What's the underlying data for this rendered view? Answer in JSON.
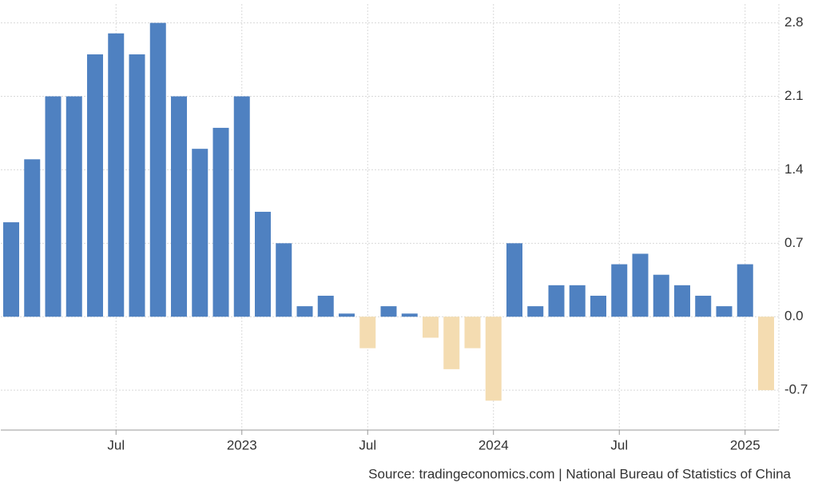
{
  "chart_data": {
    "type": "bar",
    "source": "Source: tradingeconomics.com | National Bureau of Statistics of China",
    "categories": [
      null,
      null,
      null,
      null,
      null,
      "Jul",
      null,
      null,
      null,
      null,
      null,
      "2023",
      null,
      null,
      null,
      null,
      null,
      "Jul",
      null,
      null,
      null,
      null,
      null,
      "2024",
      null,
      null,
      null,
      null,
      null,
      "Jul",
      null,
      null,
      null,
      null,
      null,
      "2025",
      null
    ],
    "values": [
      0.9,
      1.5,
      2.1,
      2.1,
      2.5,
      2.7,
      2.5,
      2.8,
      2.1,
      1.6,
      1.8,
      2.1,
      1.0,
      0.7,
      0.1,
      0.2,
      0.03,
      -0.3,
      0.1,
      0.03,
      -0.2,
      -0.5,
      -0.3,
      -0.8,
      0.7,
      0.1,
      0.3,
      0.3,
      0.2,
      0.5,
      0.6,
      0.4,
      0.3,
      0.2,
      0.1,
      0.5,
      -0.7
    ],
    "color": "#4f81c1",
    "negative_color": "#f4dcb1",
    "ylim": [
      -1.08,
      2.98
    ],
    "yticks": [
      -0.7,
      {
        "value": 0,
        "label": "0.0"
      },
      0.7,
      1.4,
      2.1,
      2.8
    ],
    "grid": true
  }
}
